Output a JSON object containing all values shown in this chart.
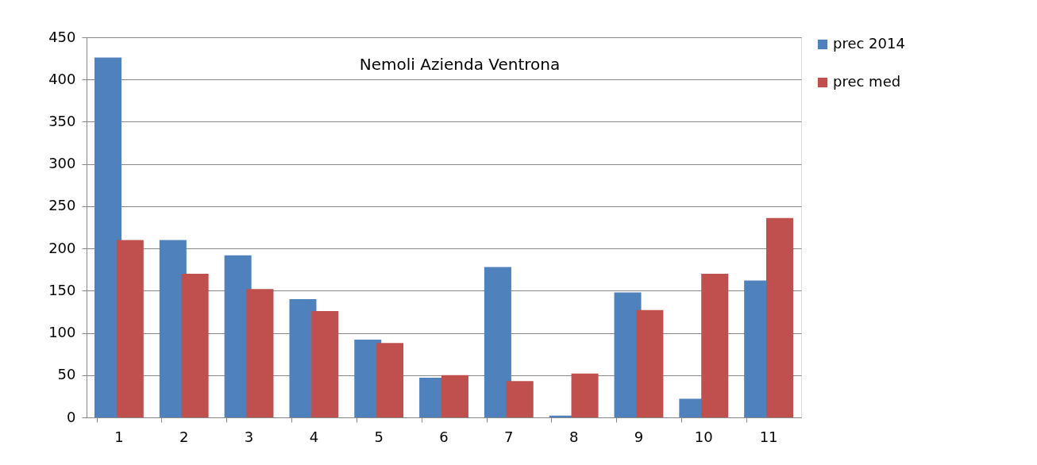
{
  "chart_data": {
    "type": "bar",
    "title": "Nemoli  Azienda Ventrona",
    "categories": [
      "1",
      "2",
      "3",
      "4",
      "5",
      "6",
      "7",
      "8",
      "9",
      "10",
      "11"
    ],
    "series": [
      {
        "name": "prec 2014",
        "color": "#4f81bd",
        "values": [
          426,
          210,
          192,
          140,
          92,
          47,
          178,
          2,
          148,
          22,
          162
        ]
      },
      {
        "name": "prec med",
        "color": "#c0504d",
        "values": [
          210,
          170,
          152,
          126,
          88,
          50,
          43,
          52,
          127,
          170,
          236
        ]
      }
    ],
    "ylim": [
      0,
      450
    ],
    "yticks": [
      0,
      50,
      100,
      150,
      200,
      250,
      300,
      350,
      400,
      450
    ],
    "grid": "y",
    "legend": "right"
  }
}
